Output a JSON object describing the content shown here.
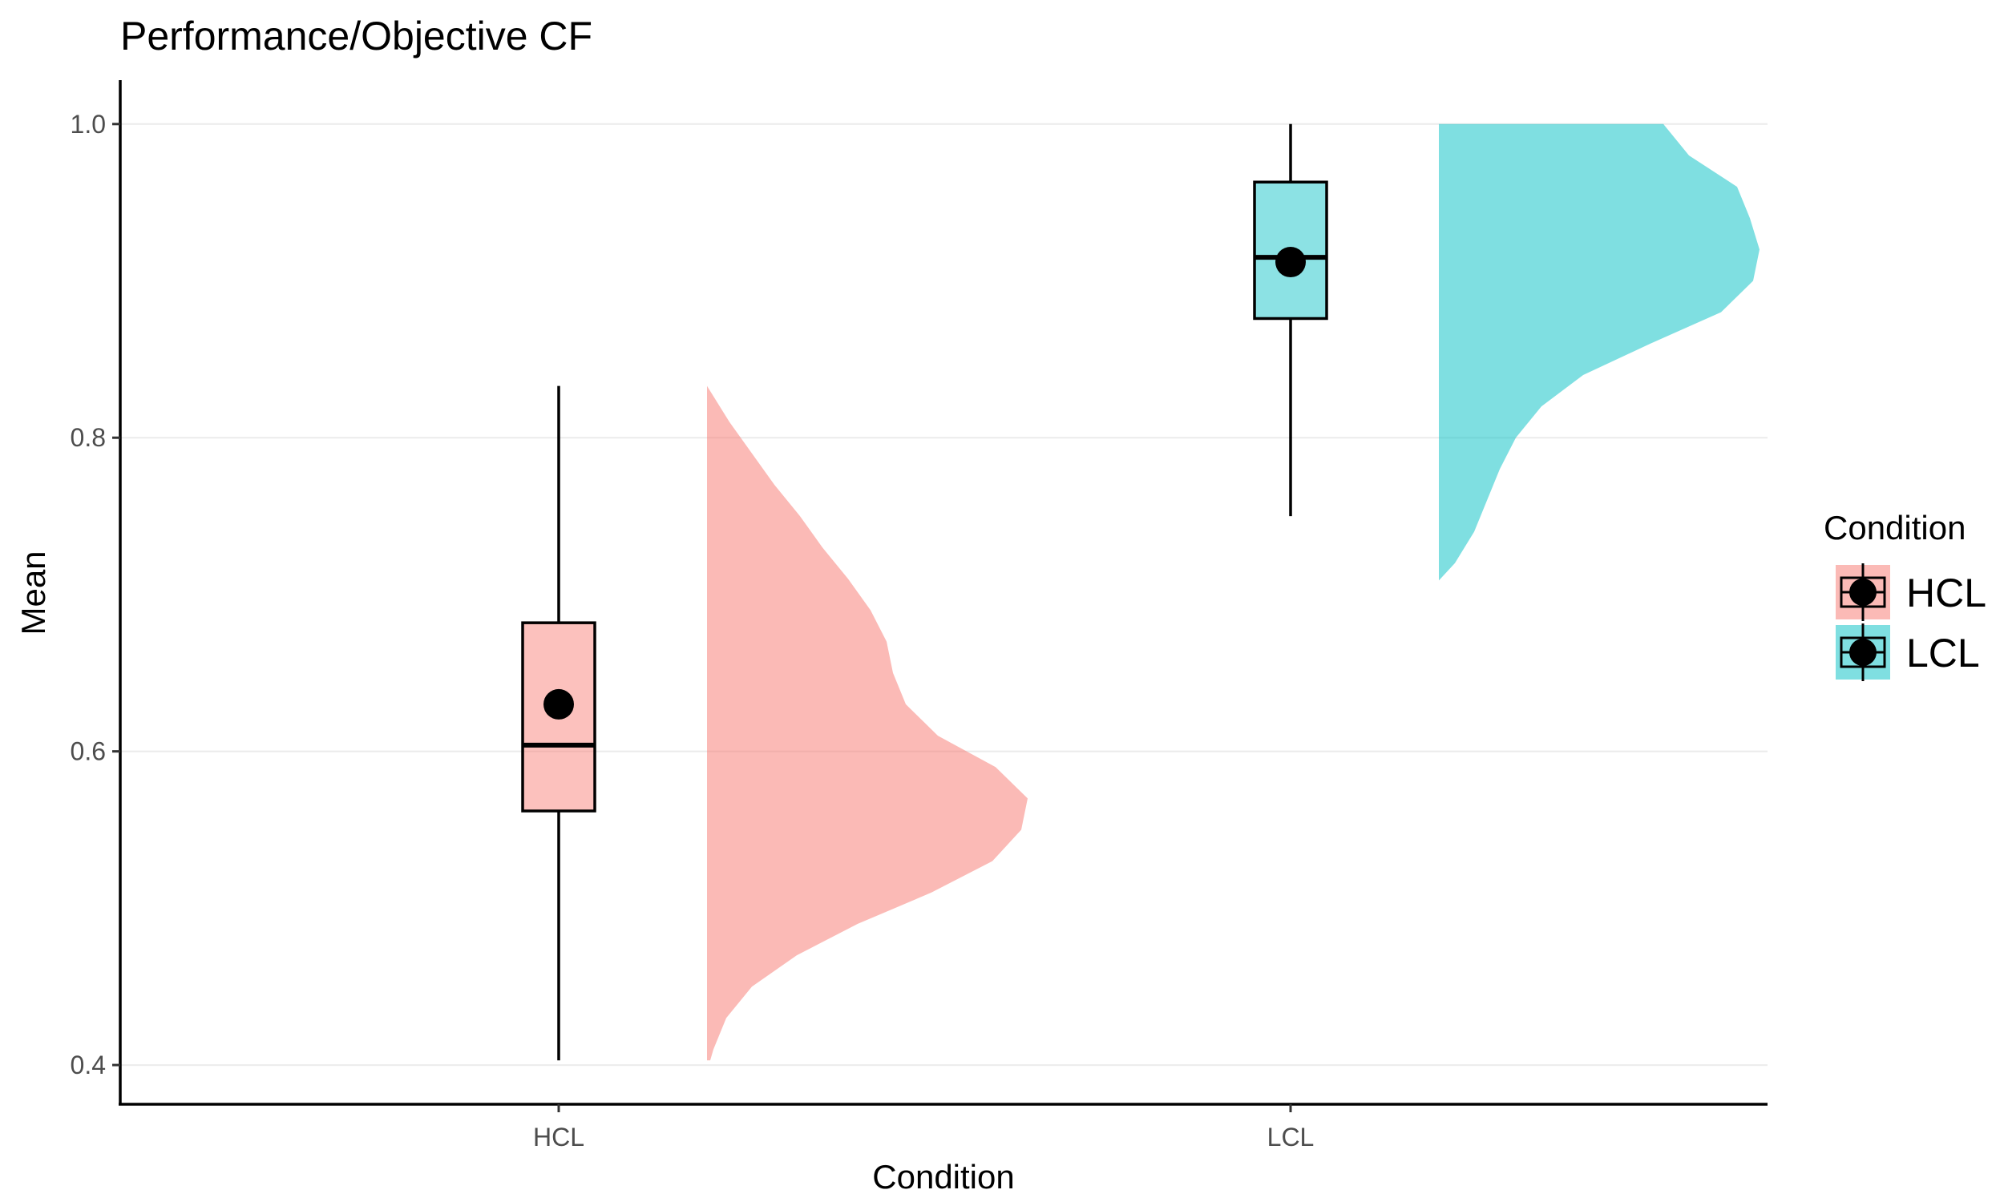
{
  "colors": {
    "HCL": "#F8766D",
    "LCL": "#00BFC4",
    "grid": "#ebebeb",
    "axis": "#000000",
    "tick_text": "#4d4d4d"
  },
  "chart_data": {
    "type": "raincloud",
    "title": "Performance/Objective CF",
    "xlabel": "Condition",
    "ylabel": "Mean",
    "categories": [
      "HCL",
      "LCL"
    ],
    "ylim": [
      0.375,
      1.028
    ],
    "yticks": [
      0.4,
      0.6,
      0.8,
      1.0
    ],
    "ytick_labels": [
      "0.4",
      "0.6",
      "0.8",
      "1.0"
    ],
    "grid": true,
    "legend": {
      "title": "Condition",
      "position": "right",
      "entries": [
        "HCL",
        "LCL"
      ]
    },
    "series": [
      {
        "name": "HCL",
        "box": {
          "whisker_low": 0.403,
          "q1": 0.562,
          "median": 0.604,
          "q3": 0.682,
          "whisker_high": 0.833
        },
        "mean": 0.63,
        "density": {
          "y": [
            0.403,
            0.41,
            0.43,
            0.45,
            0.47,
            0.49,
            0.51,
            0.53,
            0.55,
            0.57,
            0.59,
            0.61,
            0.63,
            0.65,
            0.67,
            0.69,
            0.71,
            0.73,
            0.75,
            0.77,
            0.79,
            0.81,
            0.833
          ],
          "width": [
            0.01,
            0.02,
            0.06,
            0.14,
            0.28,
            0.47,
            0.7,
            0.89,
            0.98,
            1.0,
            0.9,
            0.72,
            0.62,
            0.58,
            0.56,
            0.51,
            0.44,
            0.36,
            0.29,
            0.21,
            0.14,
            0.07,
            0.0
          ]
        }
      },
      {
        "name": "LCL",
        "box": {
          "whisker_low": 0.75,
          "q1": 0.876,
          "median": 0.915,
          "q3": 0.963,
          "whisker_high": 1.0
        },
        "mean": 0.912,
        "density": {
          "y": [
            0.709,
            0.72,
            0.74,
            0.76,
            0.78,
            0.8,
            0.82,
            0.84,
            0.86,
            0.88,
            0.9,
            0.92,
            0.94,
            0.96,
            0.98,
            1.0
          ],
          "width": [
            0.0,
            0.05,
            0.11,
            0.15,
            0.19,
            0.24,
            0.32,
            0.45,
            0.66,
            0.88,
            0.98,
            1.0,
            0.97,
            0.93,
            0.78,
            0.7
          ]
        }
      }
    ]
  }
}
